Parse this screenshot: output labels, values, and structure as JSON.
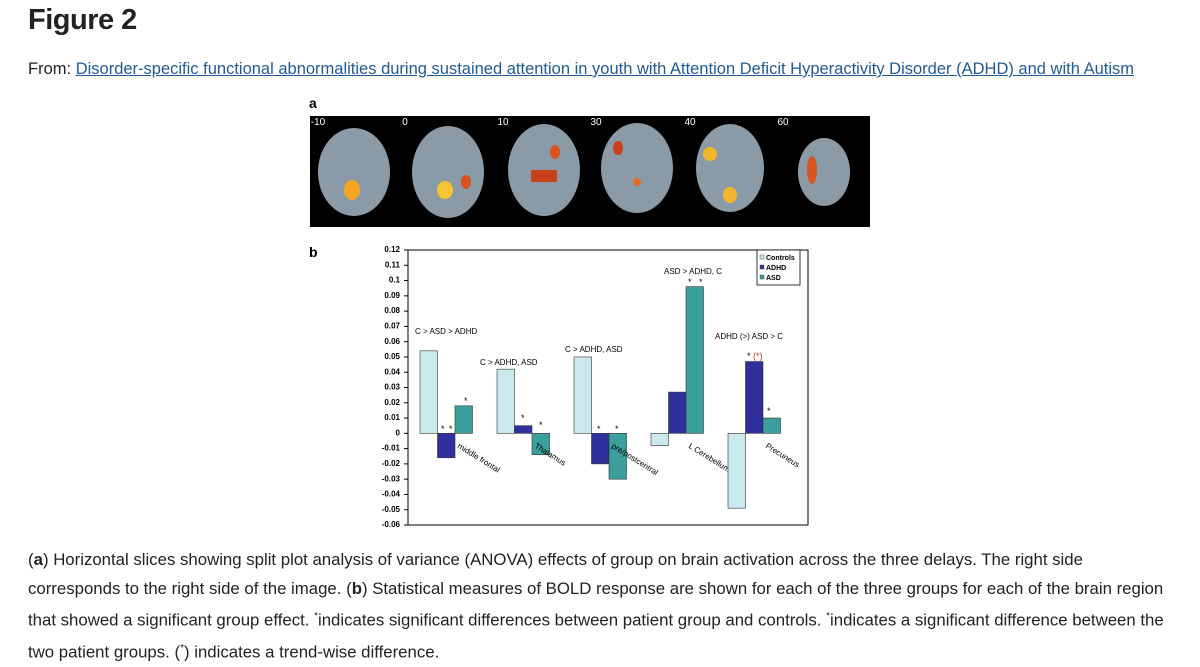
{
  "header": {
    "title": "Figure 2",
    "from_label": "From:",
    "link_text": "Disorder-specific functional abnormalities during sustained attention in youth with Attention Deficit Hyperactivity Disorder (ADHD) and with Autism"
  },
  "figure": {
    "panel_a": {
      "label": "a",
      "slices": [
        "-10",
        "0",
        "10",
        "30",
        "40",
        "60"
      ]
    },
    "panel_b": {
      "label": "b"
    }
  },
  "chart_data": {
    "type": "bar",
    "categories": [
      "middle frontal",
      "Thalamus",
      "pre/postcentral",
      "L Cerebellum",
      "Precuneus"
    ],
    "series": [
      {
        "name": "Controls",
        "color": "#c9e9ee",
        "values": [
          0.054,
          0.042,
          0.05,
          -0.008,
          -0.049
        ]
      },
      {
        "name": "ADHD",
        "color": "#30309c",
        "values": [
          -0.016,
          0.005,
          -0.02,
          0.027,
          0.047
        ]
      },
      {
        "name": "ASD",
        "color": "#3b9f9b",
        "values": [
          0.018,
          -0.014,
          -0.03,
          0.096,
          0.01
        ]
      }
    ],
    "ylim": [
      -0.06,
      0.12
    ],
    "yticks": [
      0.12,
      0.11,
      0.1,
      0.09,
      0.08,
      0.07,
      0.06,
      0.05,
      0.04,
      0.03,
      0.02,
      0.01,
      0,
      -0.01,
      -0.02,
      -0.03,
      -0.04,
      -0.05,
      -0.06
    ],
    "annotations": [
      "C > ASD > ADHD",
      "C > ADHD, ASD",
      "C > ADHD, ASD",
      "ASD > ADHD, C",
      "ADHD (>) ASD > C"
    ],
    "significance_mark": "*",
    "trend_mark": "(*)",
    "legend": "top-right"
  },
  "caption": {
    "parts": [
      "(",
      "a",
      ") Horizontal slices showing split plot analysis of variance (ANOVA) effects of group on brain activation across the three delays. The right side corresponds to the right side of the image. (",
      "b",
      ") Statistical measures of BOLD response are shown for each of the three groups for each of the brain region that showed a significant group effect. ",
      "*",
      "indicates significant differences between patient group and controls. ",
      "*",
      "indicates a significant difference between the two patient groups. (",
      "*",
      ") indicates a trend-wise difference."
    ]
  }
}
